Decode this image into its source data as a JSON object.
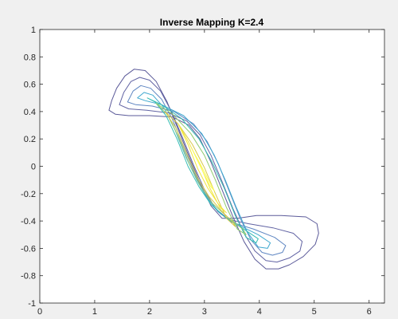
{
  "chart_data": {
    "type": "contour",
    "title": "Inverse Mapping K=2.4",
    "xlabel": "",
    "ylabel": "",
    "xlim": [
      0,
      6.28
    ],
    "ylim": [
      -1,
      1
    ],
    "x_ticks": [
      "0",
      "1",
      "2",
      "3",
      "4",
      "5",
      "6"
    ],
    "y_ticks": [
      "1",
      "0.8",
      "0.6",
      "0.4",
      "0.2",
      "0",
      "-0.2",
      "-0.4",
      "-0.6",
      "-0.8",
      "-1"
    ],
    "grid": false,
    "colormap": "parula",
    "contour_levels": [
      {
        "color": "#5b5a99",
        "points": [
          [
            1.26,
            0.41
          ],
          [
            1.31,
            0.48
          ],
          [
            1.4,
            0.57
          ],
          [
            1.55,
            0.66
          ],
          [
            1.72,
            0.71
          ],
          [
            1.92,
            0.7
          ],
          [
            2.12,
            0.62
          ],
          [
            2.32,
            0.47
          ],
          [
            2.52,
            0.27
          ],
          [
            2.72,
            0.07
          ],
          [
            2.92,
            -0.12
          ],
          [
            3.12,
            -0.29
          ],
          [
            3.32,
            -0.38
          ],
          [
            3.6,
            -0.38
          ],
          [
            3.95,
            -0.36
          ],
          [
            4.4,
            -0.36
          ],
          [
            4.85,
            -0.37
          ],
          [
            5.05,
            -0.42
          ],
          [
            5.08,
            -0.49
          ],
          [
            5.02,
            -0.57
          ],
          [
            4.8,
            -0.66
          ],
          [
            4.55,
            -0.72
          ],
          [
            4.35,
            -0.75
          ],
          [
            4.12,
            -0.75
          ],
          [
            3.92,
            -0.68
          ],
          [
            3.72,
            -0.55
          ],
          [
            3.52,
            -0.37
          ],
          [
            3.32,
            -0.17
          ],
          [
            3.12,
            0.03
          ],
          [
            2.92,
            0.2
          ],
          [
            2.72,
            0.3
          ],
          [
            2.42,
            0.36
          ],
          [
            2.0,
            0.37
          ],
          [
            1.62,
            0.37
          ],
          [
            1.38,
            0.38
          ],
          [
            1.26,
            0.41
          ]
        ]
      },
      {
        "color": "#6163a3",
        "points": [
          [
            1.45,
            0.45
          ],
          [
            1.53,
            0.54
          ],
          [
            1.66,
            0.62
          ],
          [
            1.82,
            0.65
          ],
          [
            2.0,
            0.63
          ],
          [
            2.2,
            0.55
          ],
          [
            2.4,
            0.4
          ],
          [
            2.6,
            0.21
          ],
          [
            2.8,
            0.01
          ],
          [
            3.0,
            -0.17
          ],
          [
            3.2,
            -0.31
          ],
          [
            3.45,
            -0.39
          ],
          [
            3.8,
            -0.42
          ],
          [
            4.25,
            -0.45
          ],
          [
            4.62,
            -0.49
          ],
          [
            4.78,
            -0.55
          ],
          [
            4.74,
            -0.62
          ],
          [
            4.55,
            -0.67
          ],
          [
            4.32,
            -0.7
          ],
          [
            4.12,
            -0.69
          ],
          [
            3.92,
            -0.62
          ],
          [
            3.72,
            -0.49
          ],
          [
            3.52,
            -0.31
          ],
          [
            3.32,
            -0.11
          ],
          [
            3.12,
            0.08
          ],
          [
            2.92,
            0.23
          ],
          [
            2.68,
            0.33
          ],
          [
            2.35,
            0.39
          ],
          [
            1.95,
            0.41
          ],
          [
            1.62,
            0.42
          ],
          [
            1.45,
            0.45
          ]
        ]
      },
      {
        "color": "#5f86c2",
        "points": [
          [
            1.6,
            0.47
          ],
          [
            1.7,
            0.55
          ],
          [
            1.84,
            0.59
          ],
          [
            2.02,
            0.57
          ],
          [
            2.22,
            0.49
          ],
          [
            2.42,
            0.34
          ],
          [
            2.62,
            0.14
          ],
          [
            2.82,
            -0.05
          ],
          [
            3.02,
            -0.21
          ],
          [
            3.24,
            -0.33
          ],
          [
            3.5,
            -0.41
          ],
          [
            3.9,
            -0.46
          ],
          [
            4.28,
            -0.52
          ],
          [
            4.48,
            -0.58
          ],
          [
            4.42,
            -0.63
          ],
          [
            4.24,
            -0.65
          ],
          [
            4.05,
            -0.63
          ],
          [
            3.85,
            -0.54
          ],
          [
            3.65,
            -0.38
          ],
          [
            3.45,
            -0.18
          ],
          [
            3.25,
            0.02
          ],
          [
            3.05,
            0.18
          ],
          [
            2.8,
            0.31
          ],
          [
            2.45,
            0.4
          ],
          [
            2.05,
            0.44
          ],
          [
            1.75,
            0.45
          ],
          [
            1.6,
            0.47
          ]
        ]
      },
      {
        "color": "#3fa8cf",
        "points": [
          [
            1.78,
            0.5
          ],
          [
            1.9,
            0.54
          ],
          [
            2.06,
            0.52
          ],
          [
            2.26,
            0.43
          ],
          [
            2.46,
            0.27
          ],
          [
            2.66,
            0.07
          ],
          [
            2.86,
            -0.1
          ],
          [
            3.06,
            -0.24
          ],
          [
            3.3,
            -0.35
          ],
          [
            3.62,
            -0.43
          ],
          [
            3.98,
            -0.5
          ],
          [
            4.2,
            -0.56
          ],
          [
            4.15,
            -0.6
          ],
          [
            3.98,
            -0.59
          ],
          [
            3.78,
            -0.48
          ],
          [
            3.58,
            -0.3
          ],
          [
            3.38,
            -0.1
          ],
          [
            3.18,
            0.08
          ],
          [
            2.95,
            0.24
          ],
          [
            2.62,
            0.37
          ],
          [
            2.22,
            0.45
          ],
          [
            1.92,
            0.48
          ],
          [
            1.78,
            0.5
          ]
        ]
      },
      {
        "color": "#35bdb3",
        "points": [
          [
            1.96,
            0.5
          ],
          [
            2.1,
            0.47
          ],
          [
            2.3,
            0.37
          ],
          [
            2.5,
            0.2
          ],
          [
            2.7,
            0.0
          ],
          [
            2.9,
            -0.15
          ],
          [
            3.12,
            -0.28
          ],
          [
            3.4,
            -0.38
          ],
          [
            3.72,
            -0.46
          ],
          [
            3.98,
            -0.53
          ],
          [
            3.94,
            -0.56
          ],
          [
            3.76,
            -0.52
          ],
          [
            3.56,
            -0.36
          ],
          [
            3.36,
            -0.16
          ],
          [
            3.14,
            0.03
          ],
          [
            2.9,
            0.2
          ],
          [
            2.58,
            0.35
          ],
          [
            2.22,
            0.45
          ],
          [
            1.96,
            0.5
          ]
        ]
      },
      {
        "color": "#8fca70",
        "points": [
          [
            2.12,
            0.46
          ],
          [
            2.32,
            0.38
          ],
          [
            2.52,
            0.22
          ],
          [
            2.72,
            0.02
          ],
          [
            2.92,
            -0.14
          ],
          [
            3.14,
            -0.27
          ],
          [
            3.42,
            -0.37
          ],
          [
            3.7,
            -0.46
          ],
          [
            3.76,
            -0.5
          ],
          [
            3.6,
            -0.46
          ],
          [
            3.4,
            -0.3
          ],
          [
            3.2,
            -0.1
          ],
          [
            3.0,
            0.08
          ],
          [
            2.75,
            0.24
          ],
          [
            2.42,
            0.38
          ],
          [
            2.12,
            0.46
          ]
        ]
      },
      {
        "color": "#d7c94a",
        "points": [
          [
            2.28,
            0.4
          ],
          [
            2.48,
            0.28
          ],
          [
            2.68,
            0.09
          ],
          [
            2.88,
            -0.09
          ],
          [
            3.08,
            -0.22
          ],
          [
            3.32,
            -0.33
          ],
          [
            3.52,
            -0.41
          ],
          [
            3.56,
            -0.44
          ],
          [
            3.4,
            -0.38
          ],
          [
            3.2,
            -0.2
          ],
          [
            3.0,
            -0.01
          ],
          [
            2.78,
            0.16
          ],
          [
            2.52,
            0.31
          ],
          [
            2.28,
            0.4
          ]
        ]
      },
      {
        "color": "#f2e63d",
        "points": [
          [
            2.52,
            0.31
          ],
          [
            2.7,
            0.16
          ],
          [
            2.88,
            -0.02
          ],
          [
            3.06,
            -0.16
          ],
          [
            3.26,
            -0.28
          ],
          [
            3.4,
            -0.34
          ],
          [
            3.28,
            -0.3
          ],
          [
            3.1,
            -0.16
          ],
          [
            2.92,
            0.01
          ],
          [
            2.72,
            0.17
          ],
          [
            2.52,
            0.31
          ]
        ]
      },
      {
        "color": "#fafa5c",
        "points": [
          [
            2.78,
            0.12
          ],
          [
            2.92,
            0.02
          ],
          [
            3.06,
            -0.09
          ],
          [
            3.18,
            -0.18
          ],
          [
            3.1,
            -0.14
          ],
          [
            2.96,
            -0.03
          ],
          [
            2.84,
            0.07
          ],
          [
            2.78,
            0.12
          ]
        ]
      }
    ]
  }
}
